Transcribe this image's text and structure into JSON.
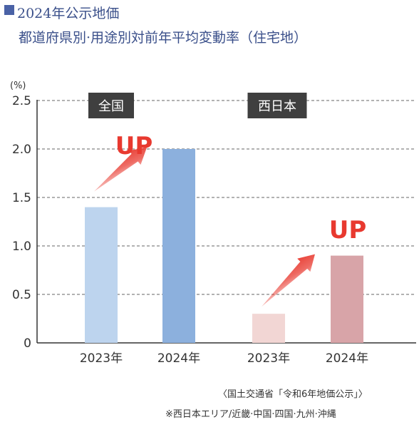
{
  "title": {
    "line1": "2024年公示地価",
    "line2": "都道府県別·用途別対前年平均変動率（住宅地）"
  },
  "chart_data": {
    "type": "bar",
    "unit": "(%)",
    "ylim": [
      0,
      2.5
    ],
    "yticks": [
      "0",
      "0.5",
      "1.0",
      "1.5",
      "2.0",
      "2.5"
    ],
    "grid": true,
    "groups": [
      {
        "label": "全国",
        "annotation": "UP",
        "bars": [
          {
            "x": "2023年",
            "value": 1.4,
            "color": "#bdd4ee"
          },
          {
            "x": "2024年",
            "value": 2.0,
            "color": "#8cb0dd"
          }
        ]
      },
      {
        "label": "西日本",
        "annotation": "UP",
        "bars": [
          {
            "x": "2023年",
            "value": 0.3,
            "color": "#f2d6d4"
          },
          {
            "x": "2024年",
            "value": 0.9,
            "color": "#d8a4a8"
          }
        ]
      }
    ],
    "colors": {
      "axis": "#333333",
      "grid": "#666666",
      "label_bg": "#3f3f3f",
      "up": "#e8392f"
    }
  },
  "notes": {
    "source": "〈国土交通省「令和6年地価公示」〉",
    "footnote": "※西日本エリア/近畿·中国·四国·九州·沖縄"
  }
}
